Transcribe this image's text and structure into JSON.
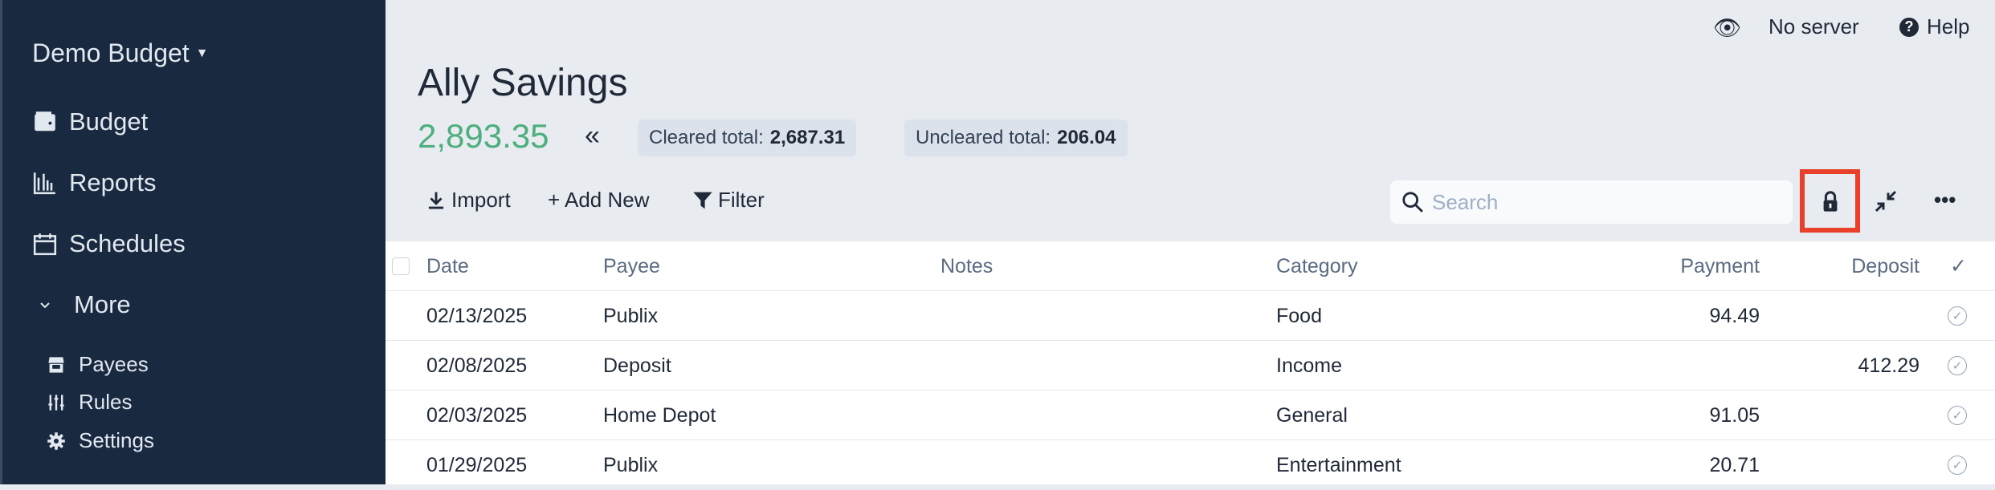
{
  "sidebar": {
    "budget_name": "Demo Budget",
    "items": [
      {
        "label": "Budget",
        "icon": "wallet-icon"
      },
      {
        "label": "Reports",
        "icon": "chart-bar-icon"
      },
      {
        "label": "Schedules",
        "icon": "calendar-icon"
      },
      {
        "label": "More",
        "icon": "chevron-down-icon"
      }
    ],
    "subitems": [
      {
        "label": "Payees",
        "icon": "store-icon"
      },
      {
        "label": "Rules",
        "icon": "sliders-icon"
      },
      {
        "label": "Settings",
        "icon": "gear-icon"
      }
    ]
  },
  "topbar": {
    "server": "No server",
    "help": "Help"
  },
  "account": {
    "title": "Ally Savings",
    "balance": "2,893.35",
    "cleared_label": "Cleared total:",
    "cleared": "2,687.31",
    "uncleared_label": "Uncleared total:",
    "uncleared": "206.04",
    "balance_color": "#4caf7d"
  },
  "toolbar": {
    "import": "Import",
    "add_new": "+ Add New",
    "filter": "Filter",
    "search_placeholder": "Search",
    "highlight_color": "#e8402a"
  },
  "table": {
    "headers": {
      "date": "Date",
      "payee": "Payee",
      "notes": "Notes",
      "category": "Category",
      "payment": "Payment",
      "deposit": "Deposit",
      "cleared": "✓"
    },
    "rows": [
      {
        "date": "02/13/2025",
        "payee": "Publix",
        "notes": "",
        "category": "Food",
        "payment": "94.49",
        "deposit": ""
      },
      {
        "date": "02/08/2025",
        "payee": "Deposit",
        "notes": "",
        "category": "Income",
        "payment": "",
        "deposit": "412.29"
      },
      {
        "date": "02/03/2025",
        "payee": "Home Depot",
        "notes": "",
        "category": "General",
        "payment": "91.05",
        "deposit": ""
      },
      {
        "date": "01/29/2025",
        "payee": "Publix",
        "notes": "",
        "category": "Entertainment",
        "payment": "20.71",
        "deposit": ""
      }
    ]
  }
}
